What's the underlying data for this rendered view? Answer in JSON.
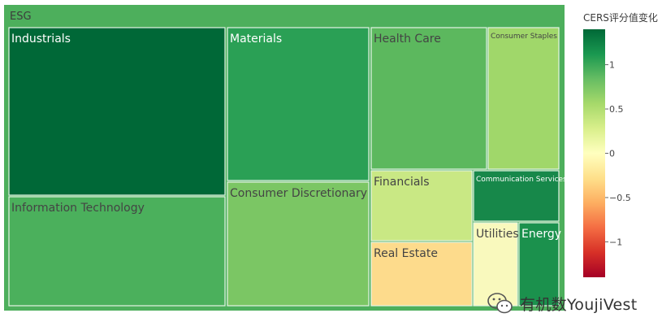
{
  "chart_data": {
    "type": "treemap",
    "root": {
      "label": "ESG",
      "color": "#4daf5c"
    },
    "value_metric": "CERS评分值变化",
    "items": [
      {
        "label": "Industrials",
        "value": 1.4,
        "color": "#006837"
      },
      {
        "label": "Information Technology",
        "value": 0.85,
        "color": "#4bb05c"
      },
      {
        "label": "Materials",
        "value": 1.05,
        "color": "#2aa055"
      },
      {
        "label": "Consumer Discretionary",
        "value": 0.7,
        "color": "#7bc664"
      },
      {
        "label": "Health Care",
        "value": 0.75,
        "color": "#5cb85e"
      },
      {
        "label": "Consumer Staples",
        "value": 0.55,
        "color": "#a0d76a"
      },
      {
        "label": "Financials",
        "value": 0.4,
        "color": "#c9e884"
      },
      {
        "label": "Communication Services",
        "value": 1.15,
        "color": "#17884a"
      },
      {
        "label": "Real Estate",
        "value": -0.15,
        "color": "#fddb8c"
      },
      {
        "label": "Utilities",
        "value": 0.1,
        "color": "#f9f9bd"
      },
      {
        "label": "Energy",
        "value": 1.05,
        "color": "#1b914d"
      }
    ],
    "colorbar": {
      "title": "CERS评分值变化",
      "range": [
        -1.4,
        1.4
      ],
      "ticks": [
        1,
        0.5,
        0,
        -0.5,
        -1
      ],
      "tick_labels": [
        "1",
        "0.5",
        "0",
        "−0.5",
        "−1"
      ],
      "colorscale": [
        "#a50026",
        "#d73027",
        "#f46d43",
        "#fdae61",
        "#fee08b",
        "#ffffbf",
        "#d9ef8b",
        "#a6d96a",
        "#66bd63",
        "#1a9850",
        "#006837"
      ]
    }
  },
  "watermark": {
    "text": "有机数YoujiVest",
    "icon": "wechat-icon"
  }
}
